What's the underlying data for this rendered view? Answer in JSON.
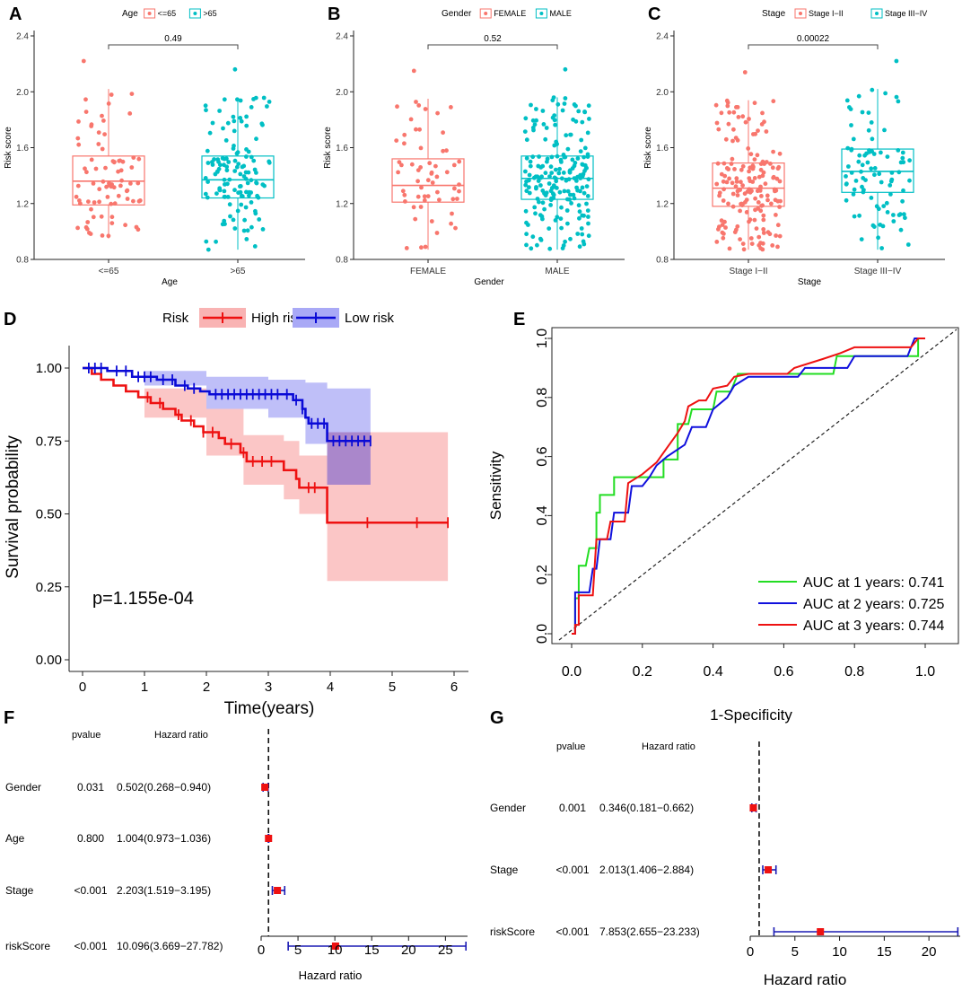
{
  "figure": {
    "panel_letters": [
      "A",
      "B",
      "C",
      "D",
      "E",
      "F",
      "G"
    ]
  },
  "colors": {
    "salmon": "#F8766D",
    "teal": "#00BFC4",
    "high_risk": "#EE1111",
    "high_risk_band": "#F9B3B3",
    "low_risk": "#0A0AD6",
    "low_risk_band": "#A9A9F6",
    "overlap_band": "#A783C8",
    "roc_green": "#22DD22",
    "roc_blue": "#1010DD",
    "roc_red": "#EE1111",
    "forest_point": "#EE1111",
    "forest_ci": "#1A1AB4"
  },
  "chart_data": [
    {
      "id": "A",
      "type": "boxplot",
      "legend_title": "Age",
      "legend": [
        "<=65",
        ">65"
      ],
      "categories": [
        "<=65",
        ">65"
      ],
      "xlabel": "Age",
      "ylabel": "Risk score",
      "ylim": [
        0.8,
        2.4
      ],
      "yticks": [
        "0.8",
        "1.2",
        "1.6",
        "2.0",
        "2.4"
      ],
      "p_value": "0.49",
      "series": [
        {
          "name": "<=65",
          "min": 0.95,
          "q1": 1.19,
          "median": 1.36,
          "q3": 1.54,
          "max": 2.02,
          "n": 80
        },
        {
          "name": ">65",
          "min": 0.87,
          "q1": 1.24,
          "median": 1.37,
          "q3": 1.54,
          "max": 1.96,
          "n": 130
        }
      ]
    },
    {
      "id": "B",
      "type": "boxplot",
      "legend_title": "Gender",
      "legend": [
        "FEMALE",
        "MALE"
      ],
      "categories": [
        "FEMALE",
        "MALE"
      ],
      "xlabel": "Gender",
      "ylabel": "Risk score",
      "ylim": [
        0.8,
        2.4
      ],
      "yticks": [
        "0.8",
        "1.2",
        "1.6",
        "2.0",
        "2.4"
      ],
      "p_value": "0.52",
      "series": [
        {
          "name": "FEMALE",
          "min": 0.87,
          "q1": 1.21,
          "median": 1.33,
          "q3": 1.52,
          "max": 1.95,
          "n": 60
        },
        {
          "name": "MALE",
          "min": 0.87,
          "q1": 1.23,
          "median": 1.38,
          "q3": 1.54,
          "max": 1.96,
          "n": 200
        }
      ]
    },
    {
      "id": "C",
      "type": "boxplot",
      "legend_title": "Stage",
      "legend": [
        "Stage I−II",
        "Stage III−IV"
      ],
      "categories": [
        "Stage I−II",
        "Stage III−IV"
      ],
      "xlabel": "Stage",
      "ylabel": "Risk score",
      "ylim": [
        0.8,
        2.4
      ],
      "yticks": [
        "0.8",
        "1.2",
        "1.6",
        "2.0",
        "2.4"
      ],
      "p_value": "0.00022",
      "series": [
        {
          "name": "Stage I−II",
          "min": 0.87,
          "q1": 1.18,
          "median": 1.31,
          "q3": 1.49,
          "max": 1.94,
          "n": 170
        },
        {
          "name": "Stage III−IV",
          "min": 0.87,
          "q1": 1.28,
          "median": 1.43,
          "q3": 1.59,
          "max": 2.02,
          "n": 90
        }
      ]
    },
    {
      "id": "D",
      "type": "line",
      "subtype": "kaplan-meier",
      "legend_title": "Risk",
      "legend": [
        "High risk",
        "Low risk"
      ],
      "xlabel": "Time(years)",
      "ylabel": "Survival probability",
      "xlim": [
        0,
        6
      ],
      "ylim": [
        0,
        1
      ],
      "xticks": [
        "0",
        "1",
        "2",
        "3",
        "4",
        "5",
        "6"
      ],
      "yticks": [
        "0.00",
        "0.25",
        "0.50",
        "0.75",
        "1.00"
      ],
      "p_value_text": "p=1.155e-04",
      "series": [
        {
          "name": "High risk",
          "steps": [
            [
              0,
              1.0
            ],
            [
              0.15,
              0.98
            ],
            [
              0.3,
              0.96
            ],
            [
              0.5,
              0.94
            ],
            [
              0.7,
              0.92
            ],
            [
              0.9,
              0.9
            ],
            [
              1.1,
              0.88
            ],
            [
              1.3,
              0.86
            ],
            [
              1.5,
              0.84
            ],
            [
              1.6,
              0.82
            ],
            [
              1.8,
              0.8
            ],
            [
              1.95,
              0.78
            ],
            [
              2.2,
              0.76
            ],
            [
              2.3,
              0.74
            ],
            [
              2.55,
              0.71
            ],
            [
              2.65,
              0.68
            ],
            [
              3.25,
              0.65
            ],
            [
              3.45,
              0.62
            ],
            [
              3.5,
              0.59
            ],
            [
              3.95,
              0.47
            ],
            [
              5.9,
              0.47
            ]
          ],
          "band": [
            [
              0,
              1.0,
              1.0
            ],
            [
              1.0,
              0.83,
              0.93
            ],
            [
              2.0,
              0.7,
              0.86
            ],
            [
              2.6,
              0.6,
              0.77
            ],
            [
              3.25,
              0.55,
              0.75
            ],
            [
              3.5,
              0.5,
              0.7
            ],
            [
              3.95,
              0.27,
              0.78
            ],
            [
              5.9,
              0.27,
              0.78
            ]
          ],
          "censor": [
            1.05,
            1.25,
            1.55,
            1.75,
            1.95,
            2.1,
            2.4,
            2.6,
            2.75,
            2.9,
            3.05,
            3.65,
            3.75,
            4.6,
            5.4,
            5.9
          ]
        },
        {
          "name": "Low risk",
          "steps": [
            [
              0,
              1.0
            ],
            [
              0.4,
              0.99
            ],
            [
              0.8,
              0.97
            ],
            [
              1.2,
              0.96
            ],
            [
              1.5,
              0.94
            ],
            [
              1.7,
              0.93
            ],
            [
              1.9,
              0.92
            ],
            [
              2.05,
              0.91
            ],
            [
              3.4,
              0.89
            ],
            [
              3.55,
              0.86
            ],
            [
              3.6,
              0.83
            ],
            [
              3.65,
              0.81
            ],
            [
              3.95,
              0.75
            ],
            [
              4.65,
              0.75
            ]
          ],
          "band": [
            [
              0,
              1.0,
              1.0
            ],
            [
              1.0,
              0.94,
              0.99
            ],
            [
              2.0,
              0.86,
              0.97
            ],
            [
              3.0,
              0.83,
              0.96
            ],
            [
              3.6,
              0.74,
              0.95
            ],
            [
              3.95,
              0.6,
              0.93
            ],
            [
              4.65,
              0.6,
              0.93
            ]
          ],
          "censor": [
            0.1,
            0.2,
            0.3,
            0.55,
            0.7,
            0.9,
            1.0,
            1.1,
            1.3,
            1.45,
            1.65,
            1.8,
            2.15,
            2.25,
            2.35,
            2.45,
            2.55,
            2.65,
            2.75,
            2.85,
            2.95,
            3.05,
            3.15,
            3.3,
            3.45,
            3.55,
            3.7,
            3.8,
            3.9,
            4.05,
            4.15,
            4.25,
            4.35,
            4.45,
            4.55,
            4.65
          ]
        }
      ]
    },
    {
      "id": "E",
      "type": "line",
      "subtype": "roc",
      "xlabel": "1-Specificity",
      "ylabel": "Sensitivity",
      "xlim": [
        0,
        1
      ],
      "ylim": [
        0,
        1
      ],
      "xticks": [
        "0.0",
        "0.2",
        "0.4",
        "0.6",
        "0.8",
        "1.0"
      ],
      "yticks": [
        "0.0",
        "0.2",
        "0.4",
        "0.6",
        "0.8",
        "1.0"
      ],
      "legend": [
        "AUC at 1 years: 0.741",
        "AUC at 2 years: 0.725",
        "AUC at 3 years: 0.744"
      ],
      "series": [
        {
          "name": "AUC at 1 years: 0.741",
          "points": [
            [
              0,
              0
            ],
            [
              0.01,
              0
            ],
            [
              0.01,
              0.12
            ],
            [
              0.02,
              0.12
            ],
            [
              0.02,
              0.23
            ],
            [
              0.04,
              0.23
            ],
            [
              0.05,
              0.29
            ],
            [
              0.07,
              0.29
            ],
            [
              0.07,
              0.41
            ],
            [
              0.08,
              0.41
            ],
            [
              0.08,
              0.47
            ],
            [
              0.12,
              0.47
            ],
            [
              0.12,
              0.53
            ],
            [
              0.18,
              0.53
            ],
            [
              0.26,
              0.53
            ],
            [
              0.26,
              0.59
            ],
            [
              0.3,
              0.59
            ],
            [
              0.3,
              0.71
            ],
            [
              0.33,
              0.71
            ],
            [
              0.34,
              0.76
            ],
            [
              0.4,
              0.76
            ],
            [
              0.41,
              0.82
            ],
            [
              0.45,
              0.82
            ],
            [
              0.47,
              0.88
            ],
            [
              0.74,
              0.88
            ],
            [
              0.75,
              0.94
            ],
            [
              0.98,
              0.94
            ],
            [
              0.98,
              1.0
            ],
            [
              1.0,
              1.0
            ]
          ]
        },
        {
          "name": "AUC at 2 years: 0.725",
          "points": [
            [
              0,
              0
            ],
            [
              0.01,
              0
            ],
            [
              0.01,
              0.14
            ],
            [
              0.05,
              0.14
            ],
            [
              0.06,
              0.22
            ],
            [
              0.07,
              0.22
            ],
            [
              0.08,
              0.32
            ],
            [
              0.11,
              0.32
            ],
            [
              0.12,
              0.41
            ],
            [
              0.16,
              0.41
            ],
            [
              0.17,
              0.5
            ],
            [
              0.2,
              0.5
            ],
            [
              0.22,
              0.53
            ],
            [
              0.24,
              0.57
            ],
            [
              0.27,
              0.6
            ],
            [
              0.32,
              0.64
            ],
            [
              0.34,
              0.7
            ],
            [
              0.38,
              0.7
            ],
            [
              0.4,
              0.76
            ],
            [
              0.44,
              0.8
            ],
            [
              0.46,
              0.84
            ],
            [
              0.5,
              0.87
            ],
            [
              0.64,
              0.87
            ],
            [
              0.66,
              0.9
            ],
            [
              0.78,
              0.9
            ],
            [
              0.8,
              0.94
            ],
            [
              0.95,
              0.94
            ],
            [
              0.96,
              0.97
            ],
            [
              0.97,
              1.0
            ],
            [
              1.0,
              1.0
            ]
          ]
        },
        {
          "name": "AUC at 3 years: 0.744",
          "points": [
            [
              0,
              0
            ],
            [
              0.01,
              0
            ],
            [
              0.01,
              0.03
            ],
            [
              0.02,
              0.03
            ],
            [
              0.02,
              0.13
            ],
            [
              0.06,
              0.13
            ],
            [
              0.07,
              0.32
            ],
            [
              0.1,
              0.32
            ],
            [
              0.11,
              0.38
            ],
            [
              0.15,
              0.38
            ],
            [
              0.16,
              0.51
            ],
            [
              0.2,
              0.54
            ],
            [
              0.24,
              0.58
            ],
            [
              0.27,
              0.63
            ],
            [
              0.3,
              0.68
            ],
            [
              0.32,
              0.72
            ],
            [
              0.33,
              0.77
            ],
            [
              0.36,
              0.79
            ],
            [
              0.38,
              0.79
            ],
            [
              0.4,
              0.83
            ],
            [
              0.44,
              0.84
            ],
            [
              0.46,
              0.87
            ],
            [
              0.5,
              0.88
            ],
            [
              0.61,
              0.88
            ],
            [
              0.63,
              0.9
            ],
            [
              0.71,
              0.93
            ],
            [
              0.76,
              0.95
            ],
            [
              0.8,
              0.97
            ],
            [
              0.96,
              0.97
            ],
            [
              0.98,
              1.0
            ],
            [
              1.0,
              1.0
            ]
          ]
        }
      ]
    },
    {
      "id": "F",
      "type": "forest",
      "header_pvalue": "pvalue",
      "header_hr": "Hazard ratio",
      "xlabel": "Hazard ratio",
      "xlim": [
        0,
        28
      ],
      "xticks": [
        "0",
        "5",
        "10",
        "15",
        "20",
        "25"
      ],
      "reference": 1,
      "rows": [
        {
          "label": "Gender",
          "pvalue": "0.031",
          "hr_text": "0.502(0.268−0.940)",
          "hr": 0.502,
          "lo": 0.268,
          "hi": 0.94
        },
        {
          "label": "Age",
          "pvalue": "0.800",
          "hr_text": "1.004(0.973−1.036)",
          "hr": 1.004,
          "lo": 0.973,
          "hi": 1.036
        },
        {
          "label": "Stage",
          "pvalue": "<0.001",
          "hr_text": "2.203(1.519−3.195)",
          "hr": 2.203,
          "lo": 1.519,
          "hi": 3.195
        },
        {
          "label": "riskScore",
          "pvalue": "<0.001",
          "hr_text": "10.096(3.669−27.782)",
          "hr": 10.096,
          "lo": 3.669,
          "hi": 27.782
        }
      ]
    },
    {
      "id": "G",
      "type": "forest",
      "header_pvalue": "pvalue",
      "header_hr": "Hazard ratio",
      "xlabel": "Hazard ratio",
      "xlim": [
        0,
        23.5
      ],
      "xticks": [
        "0",
        "5",
        "10",
        "15",
        "20"
      ],
      "reference": 1,
      "rows": [
        {
          "label": "Gender",
          "pvalue": "0.001",
          "hr_text": "0.346(0.181−0.662)",
          "hr": 0.346,
          "lo": 0.181,
          "hi": 0.662
        },
        {
          "label": "Stage",
          "pvalue": "<0.001",
          "hr_text": "2.013(1.406−2.884)",
          "hr": 2.013,
          "lo": 1.406,
          "hi": 2.884
        },
        {
          "label": "riskScore",
          "pvalue": "<0.001",
          "hr_text": "7.853(2.655−23.233)",
          "hr": 7.853,
          "lo": 2.655,
          "hi": 23.233
        }
      ]
    }
  ]
}
